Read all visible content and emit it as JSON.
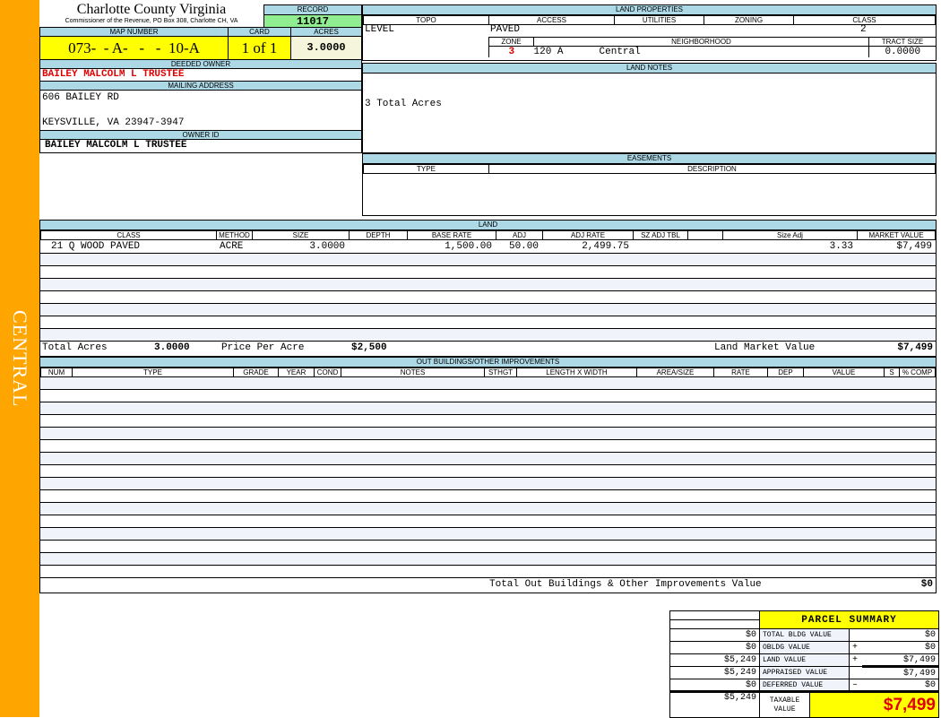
{
  "sidebar_label": "CENTRAL",
  "header": {
    "county": "Charlotte County Virginia",
    "office": "Commissioner of the Revenue, PO Box 308, Charlotte CH, VA",
    "record_label": "RECORD",
    "record": "11017",
    "map_number_label": "MAP NUMBER",
    "map_number": "073-  - A-   -   -  10-A",
    "card_label": "CARD",
    "card": "1 of 1",
    "acres_label": "ACRES",
    "acres": "3.0000"
  },
  "owner": {
    "deeded_label": "DEEDED OWNER",
    "deeded": "BAILEY MALCOLM L TRUSTEE",
    "mailing_label": "MAILING ADDRESS",
    "address1": "606 BAILEY RD",
    "address2": "KEYSVILLE, VA 23947-3947",
    "owner_id_label": "OWNER ID",
    "owner_id": "BAILEY MALCOLM L TRUSTEE"
  },
  "land_properties": {
    "title": "LAND PROPERTIES",
    "topo_label": "TOPO",
    "access_label": "ACCESS",
    "utilities_label": "UTILITIES",
    "zoning_label": "ZONING",
    "class_label": "CLASS",
    "topo": "LEVEL",
    "access": "PAVED",
    "class": "2",
    "zone_label": "ZONE",
    "neighborhood_label": "NEIGHBORHOOD",
    "tract_label": "TRACT SIZE",
    "zone": "3",
    "neighborhood_code": "120 A",
    "neighborhood": "Central",
    "tract_size": "0.0000"
  },
  "land_notes": {
    "title": "LAND NOTES",
    "text": "3 Total Acres"
  },
  "easements": {
    "title": "EASEMENTS",
    "type_label": "TYPE",
    "description_label": "DESCRIPTION"
  },
  "land": {
    "title": "LAND",
    "columns": [
      "CLASS",
      "METHOD",
      "SIZE",
      "DEPTH",
      "BASE RATE",
      "ADJ",
      "ADJ RATE",
      "SZ ADJ TBL",
      "",
      "Size Adj",
      "MARKET VALUE"
    ],
    "rows": [
      [
        "21 Q WOOD PAVED",
        "ACRE",
        "3.0000",
        "",
        "1,500.00",
        "50.00",
        "2,499.75",
        "",
        "",
        "3.33",
        "$7,499"
      ]
    ],
    "total_acres_label": "Total Acres",
    "total_acres": "3.0000",
    "price_per_acre_label": "Price Per Acre",
    "price_per_acre": "$2,500",
    "market_value_label": "Land Market Value",
    "market_value": "$7,499"
  },
  "outbuildings": {
    "title": "OUT BUILDINGS/OTHER IMPROVEMENTS",
    "columns": [
      "NUM",
      "TYPE",
      "GRADE",
      "YEAR",
      "COND",
      "NOTES",
      "STHGT",
      "LENGTH X WIDTH",
      "AREA/SIZE",
      "RATE",
      "DEP",
      "VALUE",
      "S",
      "% COMP"
    ],
    "total_label": "Total Out Buildings & Other Improvements Value",
    "total": "$0"
  },
  "summary": {
    "title": "PARCEL SUMMARY",
    "rows": [
      {
        "prior": "$0",
        "label": "TOTAL BLDG VALUE",
        "op": "",
        "value": "$0"
      },
      {
        "prior": "$0",
        "label": "OBLDG VALUE",
        "op": "+",
        "value": "$0"
      },
      {
        "prior": "$5,249",
        "label": "LAND VALUE",
        "op": "+",
        "value": "$7,499"
      },
      {
        "prior": "$5,249",
        "label": "APPRAISED VALUE",
        "op": "",
        "value": "$7,499"
      },
      {
        "prior": "$0",
        "label": "DEFERRED VALUE",
        "op": "–",
        "value": "$0"
      }
    ],
    "taxable_prior": "$5,249",
    "taxable_label": "TAXABLE VALUE",
    "taxable": "$7,499"
  },
  "colors": {
    "sidebar": "#FFA500",
    "header_blue": "#ADD8E6",
    "record_green": "#90EE90",
    "highlight_yellow": "#FFFF00",
    "owner_red": "#E00000"
  }
}
